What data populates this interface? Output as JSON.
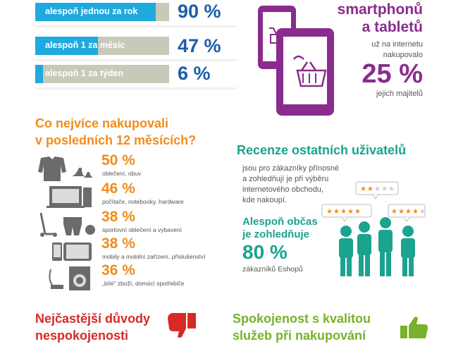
{
  "frequency": {
    "rows": [
      {
        "label": "alespoň jednou za rok",
        "percent_text": "90 %",
        "value": 90
      },
      {
        "label": "alespoň 1 za měsíc",
        "percent_text": "47 %",
        "value": 47
      },
      {
        "label": "alespoň 1 za týden",
        "percent_text": "6 %",
        "value": 6
      }
    ],
    "colors": {
      "fill": "#1fa9df",
      "track": "#c9c9b9",
      "percent": "#1a5eab"
    }
  },
  "devices": {
    "title_line1": "smartphonů",
    "title_line2": "a tabletů",
    "sub_line1": "už na internetu",
    "sub_line2": "nakupovalo",
    "percent_text": "25 %",
    "owners_text": "jejich majitelů",
    "color": "#8a2b8e"
  },
  "categories": {
    "heading_line1": "Co nejvíce nakupovali",
    "heading_line2": "v posledních 12 měsících?",
    "items": [
      {
        "percent_text": "50 %",
        "desc": "oblečení, obuv",
        "icon": "clothing-icon"
      },
      {
        "percent_text": "46 %",
        "desc": "počítače, notebooky, hardware",
        "icon": "computer-icon"
      },
      {
        "percent_text": "38 %",
        "desc": "sportovní oblečení a vybavení",
        "icon": "sport-icon"
      },
      {
        "percent_text": "38 %",
        "desc": "mobily a mobilní zařízení, příslušenství",
        "icon": "mobile-icon"
      },
      {
        "percent_text": "36 %",
        "desc": "„bílé\" zboží, domácí spotřebiče",
        "icon": "appliance-icon"
      }
    ],
    "color": "#f08c1b"
  },
  "reviews": {
    "title": "Recenze ostatních uživatelů",
    "text_line1": "jsou pro zákazníky přínosné",
    "text_line2": "a zohledňují je při výběru",
    "text_line3": "internetového obchodu,",
    "text_line4": "kde nakoupí.",
    "strong_line1": "Alespoň občas",
    "strong_line2": "je zohledňuje",
    "percent_text": "80 %",
    "sub": "zákazníků Eshopů",
    "ratings": [
      {
        "stars": 2,
        "of": 5
      },
      {
        "stars": 5,
        "of": 5
      },
      {
        "stars": 4,
        "of": 5
      }
    ],
    "color": "#1aa38f"
  },
  "bottom": {
    "left_line1": "Nejčastější důvody",
    "left_line2": "nespokojenosti",
    "right_line1": "Spokojenost s kvalitou",
    "right_line2": "služeb při nakupování",
    "left_color": "#d62a27",
    "right_color": "#78b22a"
  }
}
